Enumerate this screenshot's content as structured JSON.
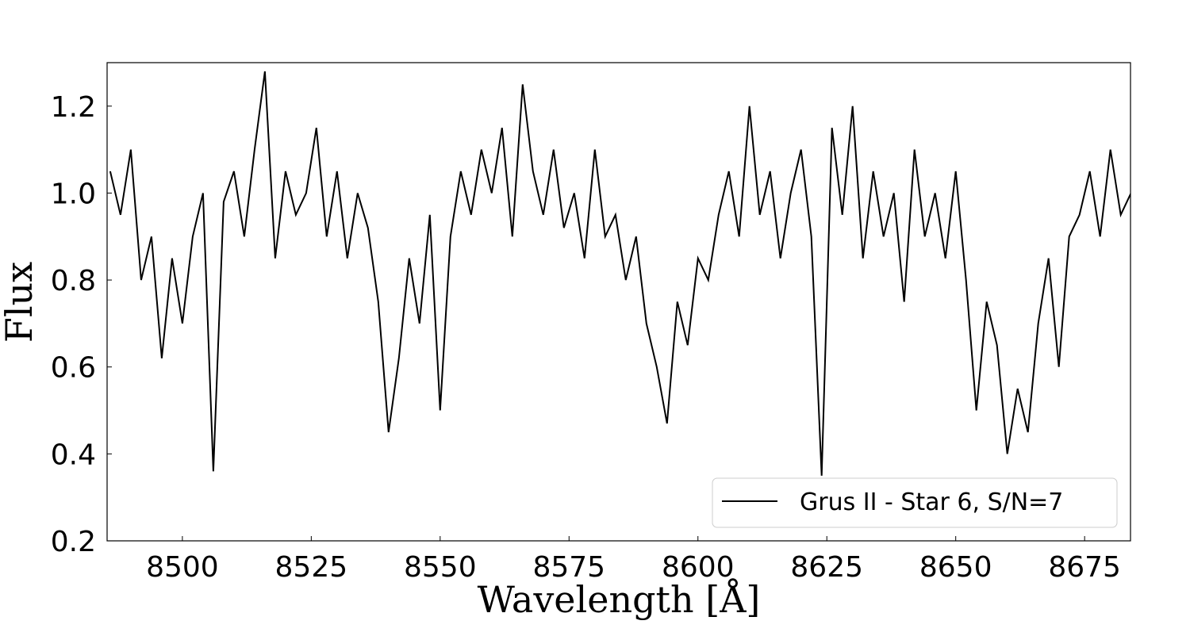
{
  "chart_data": {
    "type": "line",
    "x_label": "Wavelength [Å]",
    "y_label": "Flux",
    "x": [
      8486,
      8488,
      8490,
      8492,
      8494,
      8496,
      8498,
      8500,
      8502,
      8504,
      8506,
      8508,
      8510,
      8512,
      8514,
      8516,
      8518,
      8520,
      8522,
      8524,
      8526,
      8528,
      8530,
      8532,
      8534,
      8536,
      8538,
      8540,
      8542,
      8544,
      8546,
      8548,
      8550,
      8552,
      8554,
      8556,
      8558,
      8560,
      8562,
      8564,
      8566,
      8568,
      8570,
      8572,
      8574,
      8576,
      8578,
      8580,
      8582,
      8584,
      8586,
      8588,
      8590,
      8592,
      8594,
      8596,
      8598,
      8600,
      8602,
      8604,
      8606,
      8608,
      8610,
      8612,
      8614,
      8616,
      8618,
      8620,
      8622,
      8624,
      8626,
      8628,
      8630,
      8632,
      8634,
      8636,
      8638,
      8640,
      8642,
      8644,
      8646,
      8648,
      8650,
      8652,
      8654,
      8656,
      8658,
      8660,
      8662,
      8664,
      8666,
      8668,
      8670,
      8672,
      8674,
      8676,
      8678,
      8680,
      8682,
      8684
    ],
    "series": [
      {
        "name": "Grus II - Star 6, S/N=7",
        "color": "#000000",
        "values": [
          1.05,
          0.95,
          1.1,
          0.8,
          0.9,
          0.62,
          0.85,
          0.7,
          0.9,
          1.0,
          0.36,
          0.98,
          1.05,
          0.9,
          1.1,
          1.28,
          0.85,
          1.05,
          0.95,
          1.0,
          1.15,
          0.9,
          1.05,
          0.85,
          1.0,
          0.92,
          0.75,
          0.45,
          0.62,
          0.85,
          0.7,
          0.95,
          0.5,
          0.9,
          1.05,
          0.95,
          1.1,
          1.0,
          1.15,
          0.9,
          1.25,
          1.05,
          0.95,
          1.1,
          0.92,
          1.0,
          0.85,
          1.1,
          0.9,
          0.95,
          0.8,
          0.9,
          0.7,
          0.6,
          0.47,
          0.75,
          0.65,
          0.85,
          0.8,
          0.95,
          1.05,
          0.9,
          1.2,
          0.95,
          1.05,
          0.85,
          1.0,
          1.1,
          0.9,
          0.35,
          1.15,
          0.95,
          1.2,
          0.85,
          1.05,
          0.9,
          1.0,
          0.75,
          1.1,
          0.9,
          1.0,
          0.85,
          1.05,
          0.8,
          0.5,
          0.75,
          0.65,
          0.4,
          0.55,
          0.45,
          0.7,
          0.85,
          0.6,
          0.9,
          0.95,
          1.05,
          0.9,
          1.1,
          0.95,
          1.0
        ]
      }
    ],
    "xlim": [
      8485.4,
      8683.9
    ],
    "ylim": [
      0.2,
      1.3
    ],
    "xticks": [
      8500,
      8525,
      8550,
      8575,
      8600,
      8625,
      8650,
      8675
    ],
    "yticks": [
      {
        "value": 0.2,
        "label": "0.2"
      },
      {
        "value": 0.4,
        "label": "0.4"
      },
      {
        "value": 0.6,
        "label": "0.6"
      },
      {
        "value": 0.8,
        "label": "0.8"
      },
      {
        "value": 1.0,
        "label": "1.0"
      },
      {
        "value": 1.2,
        "label": "1.2"
      }
    ],
    "grid": false,
    "legend": "lower right"
  }
}
